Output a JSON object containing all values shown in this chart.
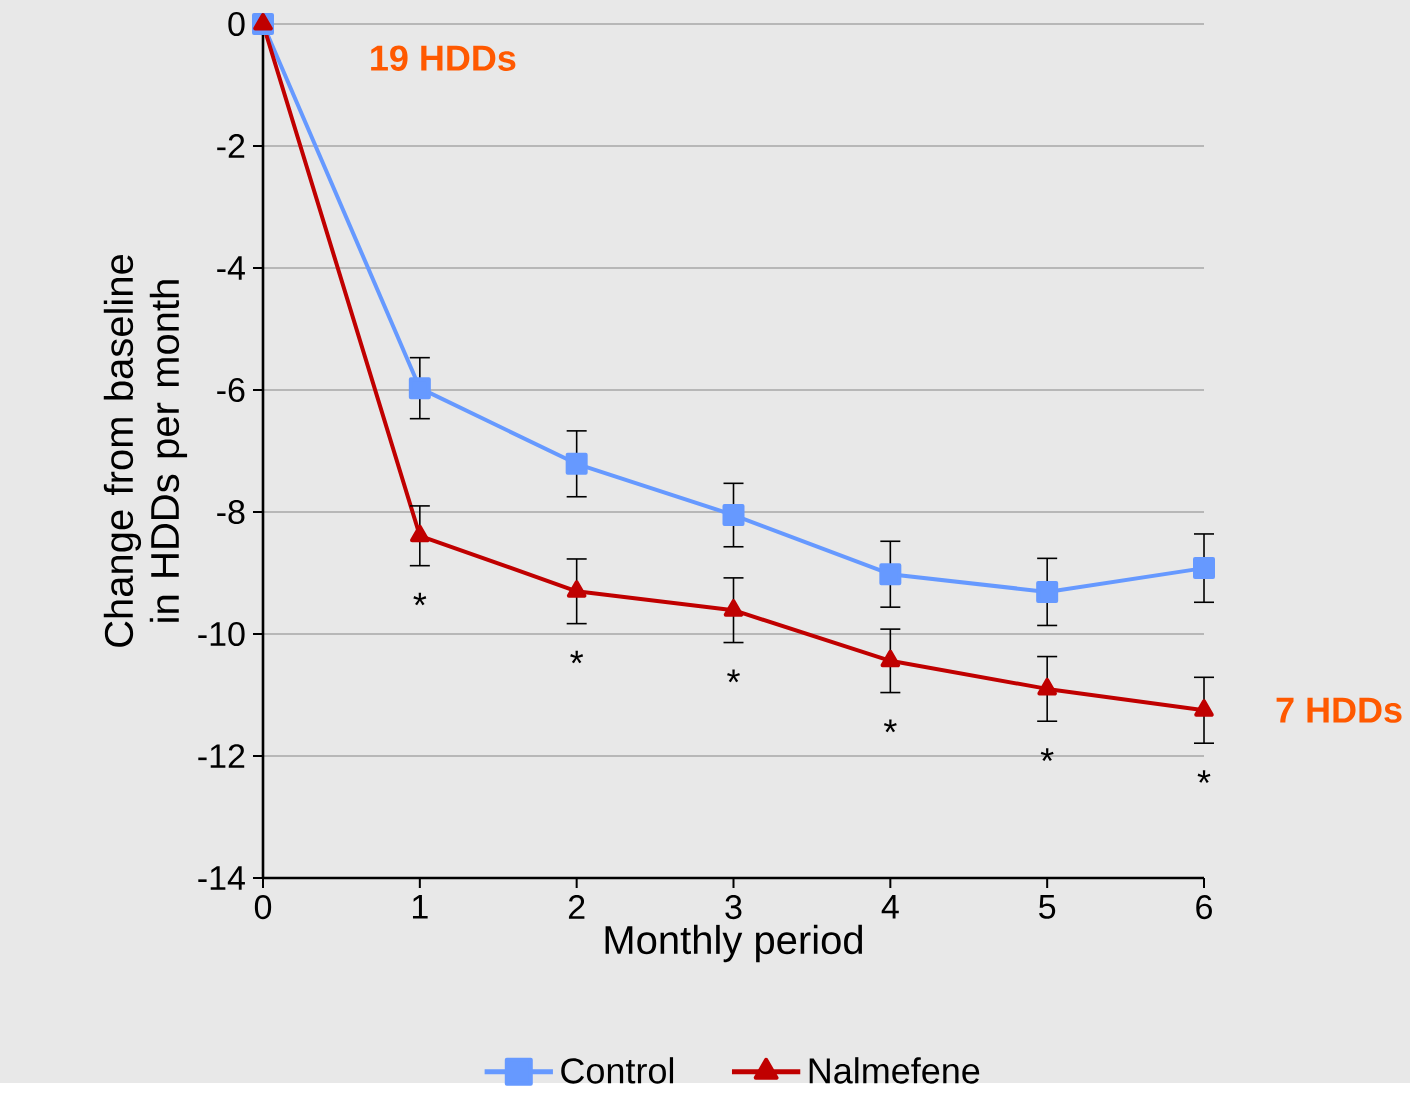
{
  "chart_data": {
    "type": "line",
    "xlabel": "Monthly period",
    "ylabel": "Change from baseline in HDDs per month",
    "x": [
      0,
      1,
      2,
      3,
      4,
      5,
      6
    ],
    "series": [
      {
        "name": "Control",
        "color": "#6699ff",
        "marker": "square",
        "values": [
          0,
          -5.97,
          -7.21,
          -8.05,
          -9.02,
          -9.31,
          -8.92
        ],
        "errors": [
          null,
          0.5,
          0.54,
          0.52,
          0.54,
          0.55,
          0.56
        ]
      },
      {
        "name": "Nalmefene",
        "color": "#c00000",
        "marker": "triangle",
        "values": [
          0,
          -8.39,
          -9.3,
          -9.61,
          -10.44,
          -10.9,
          -11.25
        ],
        "errors": [
          null,
          0.49,
          0.53,
          0.53,
          0.52,
          0.53,
          0.54
        ]
      }
    ],
    "xlim": [
      0,
      6
    ],
    "ylim": [
      -14,
      0
    ],
    "xticks": [
      0,
      1,
      2,
      3,
      4,
      5,
      6
    ],
    "yticks": [
      0,
      -2,
      -4,
      -6,
      -8,
      -10,
      -12,
      -14
    ],
    "grid": "y",
    "legend": "bottom",
    "line_style": "solid",
    "annotations": [
      "19 HDDs",
      "7 HDDs",
      "*",
      "*",
      "*",
      "*",
      "*",
      "*"
    ]
  }
}
